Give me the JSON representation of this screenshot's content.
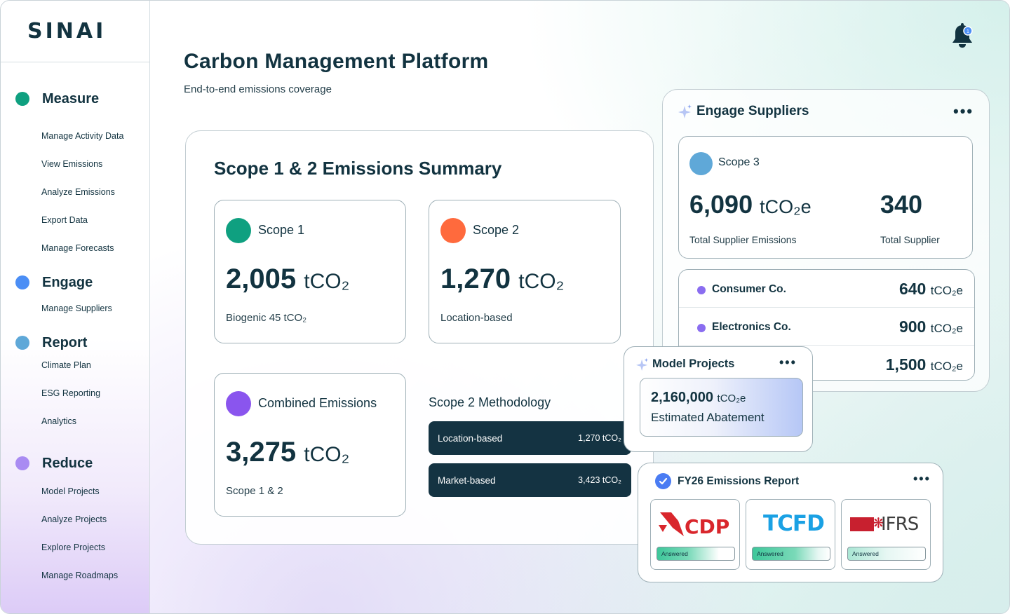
{
  "app": {
    "logo": "SINAI"
  },
  "sidebar": {
    "sections": [
      {
        "label": "Measure",
        "color": "#0fa080",
        "items": [
          "Manage Activity Data",
          "View Emissions",
          "Analyze Emissions",
          "Export Data",
          "Manage Forecasts"
        ]
      },
      {
        "label": "Engage",
        "color": "#4b8ef5",
        "items": [
          "Manage Suppliers"
        ]
      },
      {
        "label": "Report",
        "color": "#5fa8d8",
        "items": [
          "Climate Plan",
          "ESG Reporting",
          "Analytics"
        ]
      },
      {
        "label": "Reduce",
        "color": "#a98bf2",
        "items": [
          "Model Projects",
          "Analyze Projects",
          "Explore Projects",
          "Manage Roadmaps"
        ]
      }
    ]
  },
  "header": {
    "title": "Carbon Management Platform",
    "subtitle": "End-to-end emissions coverage",
    "notification_count": "1"
  },
  "summary": {
    "title": "Scope 1 & 2 Emissions Summary",
    "scope1": {
      "label": "Scope 1",
      "value": "2,005",
      "unit": "tCO₂",
      "note": "Biogenic 45 tCO₂",
      "color": "#0fa080"
    },
    "scope2": {
      "label": "Scope 2",
      "value": "1,270",
      "unit": "tCO₂",
      "note": "Location-based",
      "color": "#ff6a3d"
    },
    "combined": {
      "label": "Combined Emissions",
      "value": "3,275",
      "unit": "tCO₂",
      "note": "Scope 1 & 2",
      "color": "#8a55ee"
    },
    "methodology": {
      "title": "Scope 2 Methodology",
      "rows": [
        {
          "label": "Location-based",
          "value": "1,270 tCO₂"
        },
        {
          "label": "Market-based",
          "value": "3,423 tCO₂"
        }
      ]
    }
  },
  "engage": {
    "title": "Engage Suppliers",
    "scope3": {
      "label": "Scope 3",
      "color": "#5fa8d8",
      "emissions_value": "6,090",
      "emissions_unit": "tCO₂e",
      "emissions_label": "Total Supplier Emissions",
      "suppliers_value": "340",
      "suppliers_label": "Total Supplier"
    },
    "suppliers": [
      {
        "name": "Consumer Co.",
        "value": "640",
        "unit": "tCO₂e",
        "color": "#8a6df0"
      },
      {
        "name": "Electronics Co.",
        "value": "900",
        "unit": "tCO₂e",
        "color": "#8a6df0"
      },
      {
        "name": "",
        "value": "1,500",
        "unit": "tCO₂e",
        "color": "#8a6df0"
      }
    ]
  },
  "model": {
    "title": "Model Projects",
    "value": "2,160,000",
    "unit": "tCO₂e",
    "label": "Estimated Abatement"
  },
  "report": {
    "title": "FY26 Emissions Report",
    "frameworks": [
      {
        "name": "CDP",
        "status": "Answered"
      },
      {
        "name": "TCFD",
        "status": "Answered"
      },
      {
        "name": "IFRS",
        "status": "Answered"
      }
    ]
  },
  "icons": {
    "bell": "bell-icon",
    "sparkle": "sparkle-icon",
    "check": "check-circle-icon",
    "more": "more-horizontal-icon"
  }
}
